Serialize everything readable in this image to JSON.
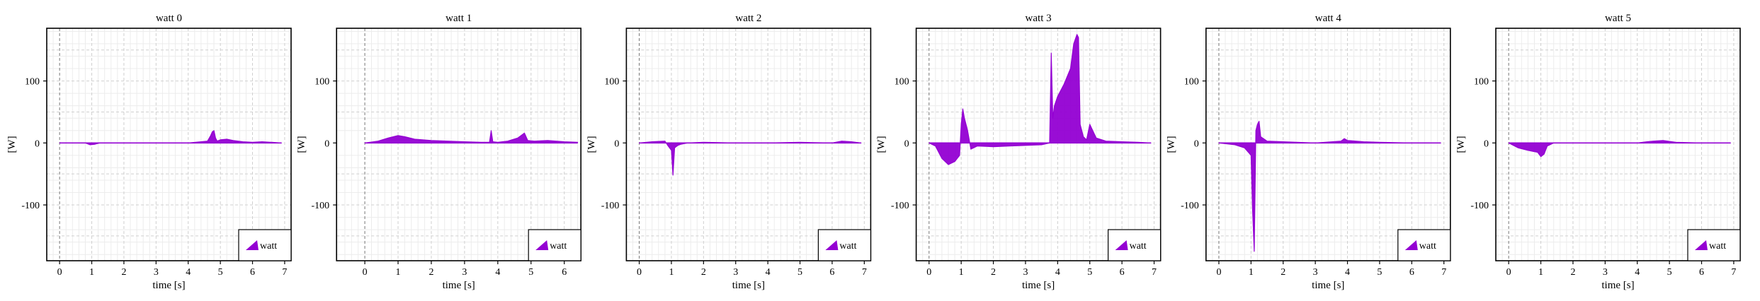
{
  "figure": {
    "series_color": "#9400d3"
  },
  "chart_data": [
    {
      "type": "area",
      "title": "watt 0",
      "xlabel": "time [s]",
      "ylabel": "[W]",
      "xlim": [
        -0.4,
        7.2
      ],
      "ylim": [
        -190,
        185
      ],
      "xticks": [
        0,
        1,
        2,
        3,
        4,
        5,
        6,
        7
      ],
      "yticks": [
        -100,
        0,
        100
      ],
      "legend": {
        "label": "watt",
        "position": "bottom-right"
      },
      "series": [
        {
          "name": "watt",
          "x": [
            0,
            0.8,
            0.95,
            1.1,
            1.25,
            2.0,
            3.0,
            4.0,
            4.6,
            4.7,
            4.75,
            4.8,
            4.85,
            4.9,
            5.0,
            5.2,
            5.4,
            5.7,
            6.0,
            6.3,
            6.6,
            6.9
          ],
          "values": [
            0,
            0,
            -3,
            -2,
            0,
            0,
            0,
            0,
            3,
            12,
            18,
            20,
            8,
            3,
            5,
            6,
            4,
            2,
            1,
            2,
            1,
            0
          ]
        }
      ]
    },
    {
      "type": "area",
      "title": "watt 1",
      "xlabel": "time [s]",
      "ylabel": "[W]",
      "xlim": [
        -0.85,
        6.5
      ],
      "ylim": [
        -190,
        185
      ],
      "xticks": [
        0,
        1,
        2,
        3,
        4,
        5,
        6
      ],
      "yticks": [
        -100,
        0,
        100
      ],
      "legend": {
        "label": "watt",
        "position": "bottom-right"
      },
      "series": [
        {
          "name": "watt",
          "x": [
            0,
            0.4,
            0.7,
            1.0,
            1.2,
            1.5,
            2.0,
            2.5,
            3.0,
            3.5,
            3.75,
            3.8,
            3.85,
            4.0,
            4.3,
            4.6,
            4.8,
            4.9,
            5.1,
            5.5,
            6.0,
            6.4
          ],
          "values": [
            0,
            3,
            8,
            12,
            10,
            6,
            4,
            3,
            2,
            1,
            1,
            20,
            2,
            1,
            3,
            8,
            16,
            4,
            3,
            4,
            2,
            1
          ]
        }
      ]
    },
    {
      "type": "area",
      "title": "watt 2",
      "xlabel": "time [s]",
      "ylabel": "[W]",
      "xlim": [
        -0.4,
        7.2
      ],
      "ylim": [
        -190,
        185
      ],
      "xticks": [
        0,
        1,
        2,
        3,
        4,
        5,
        6,
        7
      ],
      "yticks": [
        -100,
        0,
        100
      ],
      "legend": {
        "label": "watt",
        "position": "bottom-right"
      },
      "series": [
        {
          "name": "watt",
          "x": [
            0,
            0.4,
            0.8,
            0.9,
            1.0,
            1.05,
            1.1,
            1.2,
            1.3,
            1.5,
            2.0,
            3.0,
            4.0,
            5.0,
            6.0,
            6.3,
            6.6,
            6.9
          ],
          "values": [
            0,
            2,
            3,
            -5,
            -12,
            -52,
            -8,
            -4,
            -2,
            0,
            1,
            0,
            0,
            1,
            0,
            3,
            2,
            0
          ]
        }
      ]
    },
    {
      "type": "area",
      "title": "watt 3",
      "xlabel": "time [s]",
      "ylabel": "[W]",
      "xlim": [
        -0.4,
        7.2
      ],
      "ylim": [
        -190,
        185
      ],
      "xticks": [
        0,
        1,
        2,
        3,
        4,
        5,
        6,
        7
      ],
      "yticks": [
        -100,
        0,
        100
      ],
      "legend": {
        "label": "watt",
        "position": "bottom-right"
      },
      "series": [
        {
          "name": "watt",
          "x": [
            0,
            0.2,
            0.4,
            0.6,
            0.8,
            0.95,
            1.0,
            1.05,
            1.1,
            1.2,
            1.3,
            1.5,
            2.0,
            2.5,
            3.0,
            3.5,
            3.75,
            3.8,
            3.85,
            3.9,
            4.0,
            4.2,
            4.4,
            4.5,
            4.6,
            4.65,
            4.7,
            4.8,
            4.9,
            5.0,
            5.2,
            5.5,
            6.0,
            6.5,
            6.9
          ],
          "values": [
            0,
            -5,
            -25,
            -35,
            -30,
            -20,
            30,
            55,
            40,
            20,
            -10,
            -5,
            -6,
            -5,
            -4,
            -3,
            0,
            145,
            40,
            60,
            75,
            95,
            120,
            160,
            175,
            170,
            30,
            10,
            5,
            30,
            8,
            3,
            2,
            1,
            0
          ]
        }
      ]
    },
    {
      "type": "area",
      "title": "watt 4",
      "xlabel": "time [s]",
      "ylabel": "[W]",
      "xlim": [
        -0.4,
        7.2
      ],
      "ylim": [
        -190,
        185
      ],
      "xticks": [
        0,
        1,
        2,
        3,
        4,
        5,
        6,
        7
      ],
      "yticks": [
        -100,
        0,
        100
      ],
      "legend": {
        "label": "watt",
        "position": "bottom-right"
      },
      "series": [
        {
          "name": "watt",
          "x": [
            0,
            0.5,
            0.8,
            1.0,
            1.05,
            1.1,
            1.15,
            1.2,
            1.25,
            1.3,
            1.5,
            2.0,
            3.0,
            3.8,
            3.9,
            4.0,
            4.5,
            5.0,
            6.0,
            6.9
          ],
          "values": [
            0,
            -3,
            -8,
            -20,
            -110,
            -175,
            20,
            30,
            35,
            10,
            3,
            2,
            0,
            3,
            7,
            4,
            2,
            1,
            0,
            0
          ]
        }
      ]
    },
    {
      "type": "area",
      "title": "watt 5",
      "xlabel": "time [s]",
      "ylabel": "[W]",
      "xlim": [
        -0.4,
        7.2
      ],
      "ylim": [
        -190,
        185
      ],
      "xticks": [
        0,
        1,
        2,
        3,
        4,
        5,
        6,
        7
      ],
      "yticks": [
        -100,
        0,
        100
      ],
      "legend": {
        "label": "watt",
        "position": "bottom-right"
      },
      "series": [
        {
          "name": "watt",
          "x": [
            0,
            0.3,
            0.6,
            0.9,
            1.0,
            1.1,
            1.2,
            1.4,
            2.0,
            3.0,
            4.0,
            4.3,
            4.5,
            4.8,
            5.2,
            6.0,
            6.9
          ],
          "values": [
            0,
            -8,
            -12,
            -15,
            -22,
            -18,
            -5,
            0,
            0,
            0,
            0,
            2,
            3,
            4,
            1,
            0,
            0
          ]
        }
      ]
    }
  ]
}
